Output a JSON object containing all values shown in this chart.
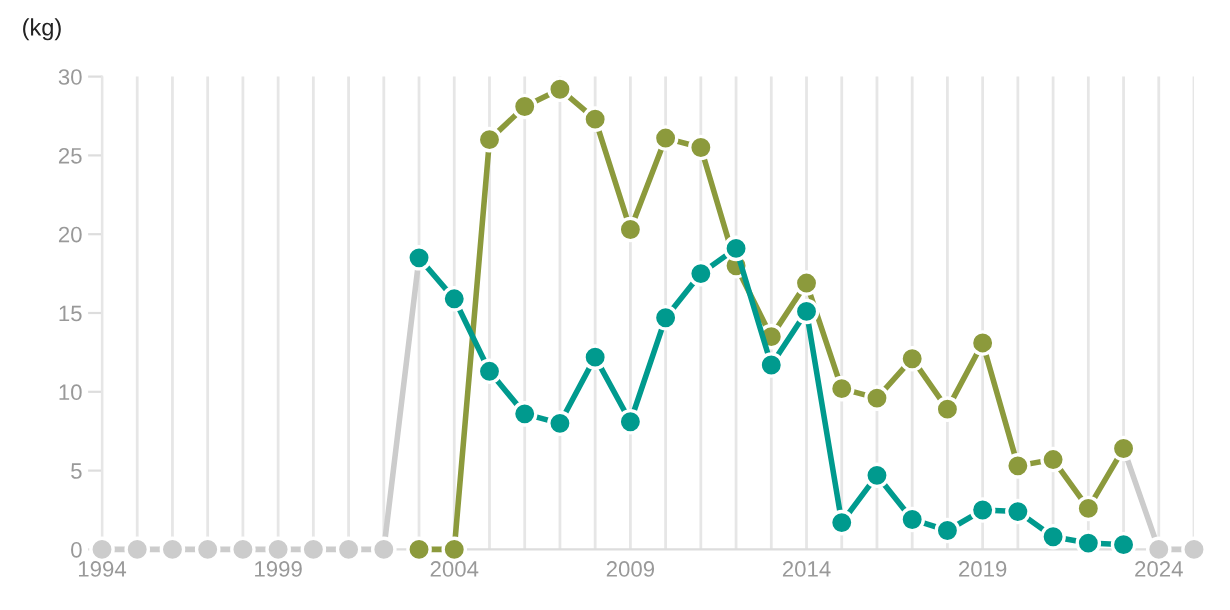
{
  "chart_data": {
    "type": "line",
    "ylabel": "(kg)",
    "xlim": [
      1994,
      2025
    ],
    "ylim": [
      0,
      30
    ],
    "yticks": [
      0,
      5,
      10,
      15,
      20,
      25,
      30
    ],
    "xticks": [
      1994,
      {
        "value": 1995,
        "label": null
      },
      {
        "value": 1996,
        "label": null
      },
      {
        "value": 1997,
        "label": null
      },
      {
        "value": 1998,
        "label": null
      },
      1999,
      {
        "value": 2000,
        "label": null
      },
      {
        "value": 2001,
        "label": null
      },
      {
        "value": 2002,
        "label": null
      },
      {
        "value": 2003,
        "label": null
      },
      2004,
      {
        "value": 2005,
        "label": null
      },
      {
        "value": 2006,
        "label": null
      },
      {
        "value": 2007,
        "label": null
      },
      {
        "value": 2008,
        "label": null
      },
      2009,
      {
        "value": 2010,
        "label": null
      },
      {
        "value": 2011,
        "label": null
      },
      {
        "value": 2012,
        "label": null
      },
      {
        "value": 2013,
        "label": null
      },
      2014,
      {
        "value": 2015,
        "label": null
      },
      {
        "value": 2016,
        "label": null
      },
      {
        "value": 2017,
        "label": null
      },
      {
        "value": 2018,
        "label": null
      },
      2019,
      {
        "value": 2020,
        "label": null
      },
      {
        "value": 2021,
        "label": null
      },
      {
        "value": 2022,
        "label": null
      },
      {
        "value": 2023,
        "label": null
      },
      2024,
      {
        "value": 2025,
        "label": null
      }
    ],
    "grid": "x",
    "marker": "circle",
    "line_style": "solid",
    "series": [
      {
        "color": "#cccccc",
        "marker": "none",
        "x": [
          1994,
          1995,
          1996,
          1997,
          1998,
          1999,
          2000,
          2001,
          2002,
          2003
        ],
        "values": [
          0,
          0,
          0,
          0,
          0,
          0,
          0,
          0,
          0,
          18.5
        ]
      },
      {
        "color": "#cccccc",
        "marker": "none",
        "x": [
          2023,
          2024,
          2025
        ],
        "values": [
          6.4,
          0,
          0
        ]
      },
      {
        "type": "scatter",
        "color": "#cccccc",
        "x": [
          1994,
          1995,
          1996,
          1997,
          1998,
          1999,
          2000,
          2001,
          2002,
          2024,
          2025
        ],
        "values": [
          0,
          0,
          0,
          0,
          0,
          0,
          0,
          0,
          0,
          0,
          0
        ]
      },
      {
        "color": "#8c9a3c",
        "x": [
          2003,
          2004,
          2005,
          2006,
          2007,
          2008,
          2009,
          2010,
          2011,
          2012,
          2013,
          2014,
          2015,
          2016,
          2017,
          2018,
          2019,
          2020,
          2021,
          2022,
          2023
        ],
        "values": [
          0,
          0,
          26.0,
          28.1,
          29.2,
          27.3,
          20.3,
          26.1,
          25.5,
          18.0,
          13.5,
          16.9,
          10.2,
          9.6,
          12.1,
          8.9,
          13.1,
          5.3,
          5.7,
          2.6,
          6.4
        ]
      },
      {
        "color": "#009a8e",
        "x": [
          2003,
          2004,
          2005,
          2006,
          2007,
          2008,
          2009,
          2010,
          2011,
          2012,
          2013,
          2014,
          2015,
          2016,
          2017,
          2018,
          2019,
          2020,
          2021,
          2022,
          2023
        ],
        "values": [
          18.5,
          15.9,
          11.3,
          8.6,
          8.0,
          12.2,
          8.1,
          14.7,
          17.5,
          19.1,
          11.7,
          15.1,
          1.7,
          4.7,
          1.9,
          1.2,
          2.5,
          2.4,
          0.8,
          0.4,
          0.3
        ]
      }
    ]
  }
}
